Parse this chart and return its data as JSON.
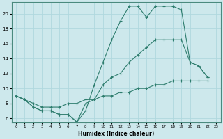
{
  "xlabel": "Humidex (Indice chaleur)",
  "x": [
    0,
    1,
    2,
    3,
    4,
    5,
    6,
    7,
    8,
    9,
    10,
    11,
    12,
    13,
    14,
    15,
    16,
    17,
    18,
    19,
    20,
    21,
    22,
    23
  ],
  "line1": [
    9.0,
    8.5,
    7.5,
    7.0,
    7.0,
    6.5,
    6.5,
    5.5,
    7.0,
    10.5,
    13.5,
    16.5,
    19.0,
    21.0,
    21.0,
    19.5,
    21.0,
    21.0,
    21.0,
    20.5,
    13.5,
    13.0,
    11.5,
    null
  ],
  "line2": [
    9.0,
    8.5,
    7.5,
    7.0,
    7.0,
    6.5,
    6.5,
    5.5,
    8.0,
    8.5,
    10.5,
    11.5,
    12.0,
    13.5,
    14.5,
    15.5,
    16.5,
    16.5,
    16.5,
    16.5,
    13.5,
    13.0,
    11.5,
    null
  ],
  "line3": [
    9.0,
    8.5,
    8.0,
    7.5,
    7.5,
    7.5,
    8.0,
    8.0,
    8.5,
    8.5,
    9.0,
    9.0,
    9.5,
    9.5,
    10.0,
    10.0,
    10.5,
    10.5,
    11.0,
    11.0,
    11.0,
    11.0,
    11.0,
    null
  ],
  "bg_color": "#cde8ec",
  "grid_color": "#b0d8de",
  "line_color": "#2e7d6e",
  "ylim": [
    5.5,
    21.5
  ],
  "yticks": [
    6,
    8,
    10,
    12,
    14,
    16,
    18,
    20
  ],
  "xlim": [
    -0.5,
    23.5
  ],
  "xticks": [
    0,
    1,
    2,
    3,
    4,
    5,
    6,
    7,
    8,
    9,
    10,
    11,
    12,
    13,
    14,
    15,
    16,
    17,
    18,
    19,
    20,
    21,
    22,
    23
  ],
  "xtick_labels": [
    "0",
    "1",
    "2",
    "3",
    "4",
    "5",
    "6",
    "7",
    "8",
    "9",
    "10",
    "11",
    "12",
    "13",
    "14",
    "15",
    "16",
    "17",
    "18",
    "19",
    "20",
    "21",
    "22",
    "23"
  ]
}
